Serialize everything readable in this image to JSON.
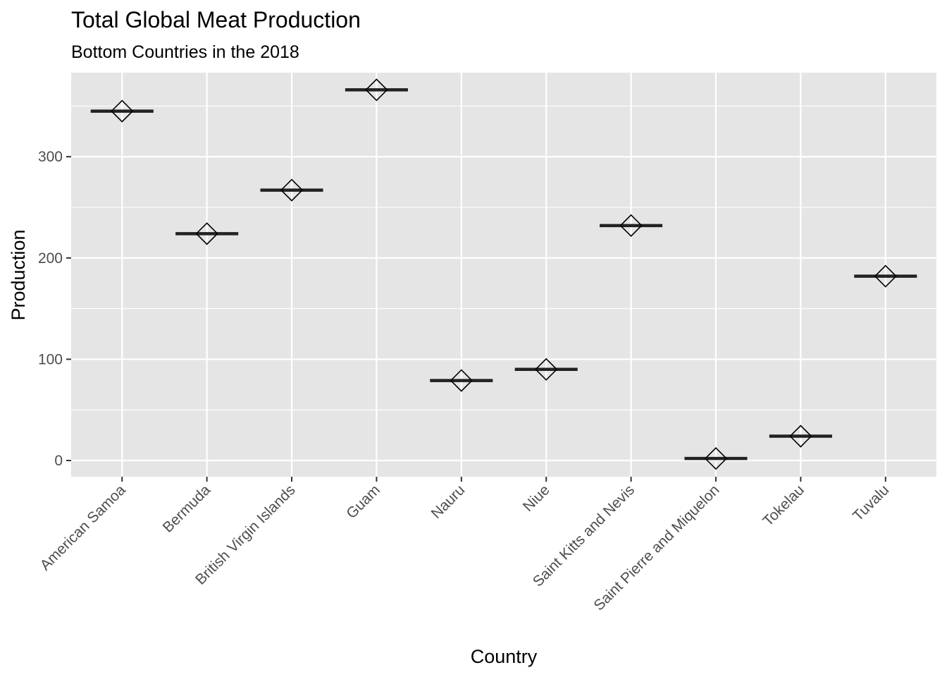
{
  "chart_data": {
    "type": "scatter",
    "title": "Total Global Meat Production",
    "subtitle": "Bottom Countries in the 2018",
    "xlabel": "Country",
    "ylabel": "Production",
    "categories": [
      "American Samoa",
      "Bermuda",
      "British Virgin Islands",
      "Guam",
      "Nauru",
      "Niue",
      "Saint Kitts and Nevis",
      "Saint Pierre and Miquelon",
      "Tokelau",
      "Tuvalu"
    ],
    "values": [
      345,
      224,
      267,
      366,
      79,
      90,
      232,
      2,
      24,
      182
    ],
    "ylim": [
      -16,
      383
    ],
    "yticks": [
      0,
      100,
      200,
      300
    ],
    "grid": true,
    "markers": [
      "crossbar",
      "diamond"
    ],
    "colors": {
      "panel_background": "#e5e5e5",
      "grid": "#ffffff",
      "crossbar": "#222222",
      "diamond_stroke": "#000000",
      "tick_label": "#4d4d4d"
    }
  }
}
